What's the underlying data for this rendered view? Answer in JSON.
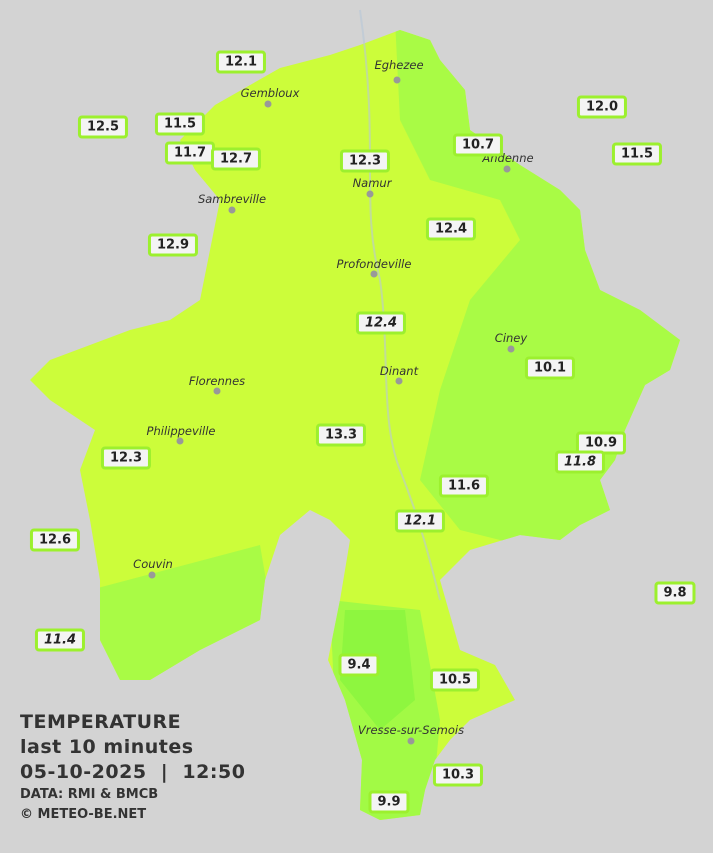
{
  "stations": [
    {
      "value": "12.1"
    },
    {
      "value": "12.5"
    },
    {
      "value": "11.5"
    },
    {
      "value": "11.7"
    },
    {
      "value": "12.7"
    },
    {
      "value": "12.3"
    },
    {
      "value": "10.7"
    },
    {
      "value": "12.0"
    },
    {
      "value": "11.5"
    },
    {
      "value": "12.9"
    },
    {
      "value": "12.4"
    },
    {
      "value": "12.4",
      "italic": true
    },
    {
      "value": "10.1"
    },
    {
      "value": "13.3"
    },
    {
      "value": "12.3"
    },
    {
      "value": "10.9"
    },
    {
      "value": "11.8",
      "italic": true
    },
    {
      "value": "11.6"
    },
    {
      "value": "12.1",
      "italic": true
    },
    {
      "value": "12.6"
    },
    {
      "value": "9.8"
    },
    {
      "value": "11.4",
      "italic": true
    },
    {
      "value": "9.4"
    },
    {
      "value": "10.5"
    },
    {
      "value": "10.3"
    },
    {
      "value": "9.9"
    }
  ],
  "cities": [
    "Eghezee",
    "Gembloux",
    "Andenne",
    "Namur",
    "Sambreville",
    "Profondeville",
    "Ciney",
    "Dinant",
    "Florennes",
    "Philippeville",
    "Couvin",
    "Vresse-sur-Semois"
  ],
  "legend": {
    "title": "TEMPERATURE",
    "subtitle": "last 10 minutes",
    "datetime": "05-10-2025  |  12:50",
    "source": "DATA: RMI & BMCB",
    "copyright": "© METEO-BE.NET"
  }
}
